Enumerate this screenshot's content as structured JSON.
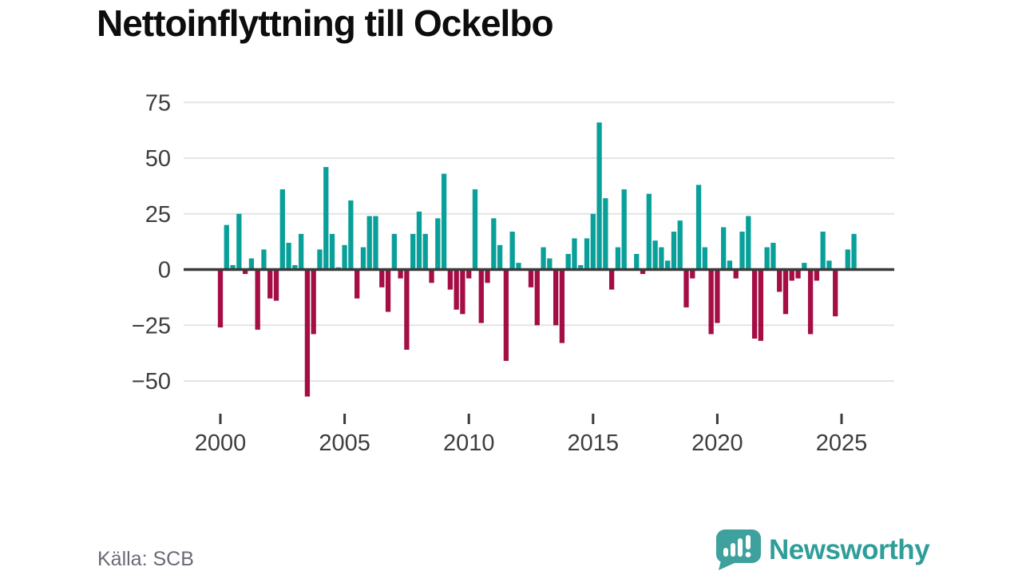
{
  "header": {
    "title": "Nettoinflyttning till Ockelbo"
  },
  "footer": {
    "source_label": "Källa: SCB",
    "logo_text": "Newsworthy"
  },
  "colors": {
    "positive_bar": "#0aa09a",
    "negative_bar": "#a40e45",
    "zero_axis": "#3a3a3a",
    "gridline": "#e4e4e4",
    "axis_label": "#3e3e3e",
    "source_text": "#6a6a75",
    "logo_teal": "#2f9d99",
    "logo_bubble": "#3ea19e"
  },
  "chart_data": {
    "type": "bar",
    "title": "Nettoinflyttning till Ockelbo",
    "source": "Källa: SCB",
    "x_unit": "quarter",
    "xlabel": "",
    "ylabel": "",
    "ylim": [
      -62,
      80
    ],
    "grid": "horizontal",
    "legend": "none",
    "yticks": [
      75,
      50,
      25,
      0,
      -25,
      -50
    ],
    "ytick_labels": [
      "75",
      "50",
      "25",
      "0",
      "−25",
      "−50"
    ],
    "xticks": [
      "2000",
      "2005",
      "2010",
      "2015",
      "2020",
      "2025"
    ],
    "x": [
      "2000Q1",
      "2000Q2",
      "2000Q3",
      "2000Q4",
      "2001Q1",
      "2001Q2",
      "2001Q3",
      "2001Q4",
      "2002Q1",
      "2002Q2",
      "2002Q3",
      "2002Q4",
      "2003Q1",
      "2003Q2",
      "2003Q3",
      "2003Q4",
      "2004Q1",
      "2004Q2",
      "2004Q3",
      "2004Q4",
      "2005Q1",
      "2005Q2",
      "2005Q3",
      "2005Q4",
      "2006Q1",
      "2006Q2",
      "2006Q3",
      "2006Q4",
      "2007Q1",
      "2007Q2",
      "2007Q3",
      "2007Q4",
      "2008Q1",
      "2008Q2",
      "2008Q3",
      "2008Q4",
      "2009Q1",
      "2009Q2",
      "2009Q3",
      "2009Q4",
      "2010Q1",
      "2010Q2",
      "2010Q3",
      "2010Q4",
      "2011Q1",
      "2011Q2",
      "2011Q3",
      "2011Q4",
      "2012Q1",
      "2012Q2",
      "2012Q3",
      "2012Q4",
      "2013Q1",
      "2013Q2",
      "2013Q3",
      "2013Q4",
      "2014Q1",
      "2014Q2",
      "2014Q3",
      "2014Q4",
      "2015Q1",
      "2015Q2",
      "2015Q3",
      "2015Q4",
      "2016Q1",
      "2016Q2",
      "2016Q3",
      "2016Q4",
      "2017Q1",
      "2017Q2",
      "2017Q3",
      "2017Q4",
      "2018Q1",
      "2018Q2",
      "2018Q3",
      "2018Q4",
      "2019Q1",
      "2019Q2",
      "2019Q3",
      "2019Q4",
      "2020Q1",
      "2020Q2",
      "2020Q3",
      "2020Q4",
      "2021Q1",
      "2021Q2",
      "2021Q3",
      "2021Q4",
      "2022Q1",
      "2022Q2",
      "2022Q3",
      "2022Q4",
      "2023Q1",
      "2023Q2",
      "2023Q3",
      "2023Q4",
      "2024Q1",
      "2024Q2",
      "2024Q3",
      "2024Q4",
      "2025Q1",
      "2025Q2",
      "2025Q3"
    ],
    "values": [
      -26,
      20,
      2,
      25,
      -2,
      5,
      -27,
      9,
      -13,
      -14,
      36,
      12,
      2,
      16,
      -57,
      -29,
      9,
      46,
      16,
      1,
      11,
      31,
      -13,
      10,
      24,
      24,
      -8,
      -19,
      16,
      -4,
      -36,
      16,
      26,
      16,
      -6,
      23,
      43,
      -9,
      -18,
      -20,
      -4,
      36,
      -24,
      -6,
      23,
      11,
      -41,
      17,
      3,
      0,
      -8,
      -25,
      10,
      5,
      -25,
      -33,
      7,
      14,
      2,
      14,
      25,
      66,
      32,
      -9,
      10,
      36,
      0,
      7,
      -2,
      34,
      13,
      10,
      4,
      17,
      22,
      -17,
      -4,
      38,
      10,
      -29,
      -24,
      19,
      4,
      -4,
      17,
      24,
      -31,
      -32,
      10,
      12,
      -10,
      -20,
      -5,
      -4,
      3,
      -29,
      -5,
      17,
      4,
      -21,
      0,
      9,
      16
    ]
  }
}
